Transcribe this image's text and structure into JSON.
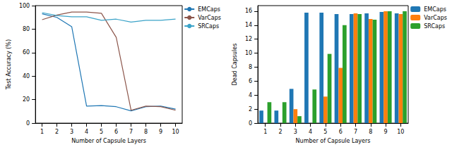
{
  "chart_data": [
    {
      "type": "line",
      "x_label": "Number of Capsule Layers",
      "y_label": "Test Accuracy (%)",
      "x": [
        1,
        2,
        3,
        4,
        5,
        6,
        7,
        8,
        9,
        10
      ],
      "xlim": [
        0.55,
        10.45
      ],
      "xticks": [
        1,
        2,
        3,
        4,
        5,
        6,
        7,
        8,
        9,
        10
      ],
      "ylim": [
        0,
        100
      ],
      "yticks": [
        0,
        20,
        40,
        60,
        80,
        100
      ],
      "grid": false,
      "legend": "right",
      "series": [
        {
          "name": "EMCaps",
          "color": "#1f77b4",
          "values": [
            93,
            90,
            82,
            14.5,
            15,
            14,
            10.5,
            14,
            14.5,
            12
          ]
        },
        {
          "name": "VarCaps",
          "color": "#8c564b",
          "values": [
            88,
            92,
            94.5,
            94.5,
            93.5,
            73,
            11,
            14.5,
            14,
            11
          ]
        },
        {
          "name": "SRCaps",
          "color": "#3ba3c8",
          "values": [
            94,
            91.5,
            90.5,
            90.5,
            87.5,
            88.5,
            86,
            87.5,
            87.5,
            88.5
          ]
        }
      ]
    },
    {
      "type": "bar",
      "x_label": "Number of Capsule Layers",
      "y_label": "Dead Capsules",
      "categories": [
        "1",
        "2",
        "3",
        "4",
        "5",
        "6",
        "7",
        "8",
        "9",
        "10"
      ],
      "ylim": [
        0,
        16.8
      ],
      "yticks": [
        0,
        2,
        4,
        6,
        8,
        10,
        12,
        14,
        16
      ],
      "grid": false,
      "legend": "right",
      "series": [
        {
          "name": "EMCaps",
          "color": "#1f77b4",
          "values": [
            1.8,
            1.8,
            4.9,
            15.8,
            15.8,
            15.6,
            15.6,
            15.7,
            15.9,
            15.7
          ]
        },
        {
          "name": "VarCaps",
          "color": "#ff7f0e",
          "values": [
            0,
            0,
            2,
            0,
            3.8,
            7.9,
            15.7,
            14.9,
            16,
            15.6
          ]
        },
        {
          "name": "SRCaps",
          "color": "#2ca02c",
          "values": [
            3,
            3,
            1,
            4.8,
            9.9,
            14,
            15.6,
            14.8,
            16,
            16
          ]
        }
      ]
    }
  ]
}
